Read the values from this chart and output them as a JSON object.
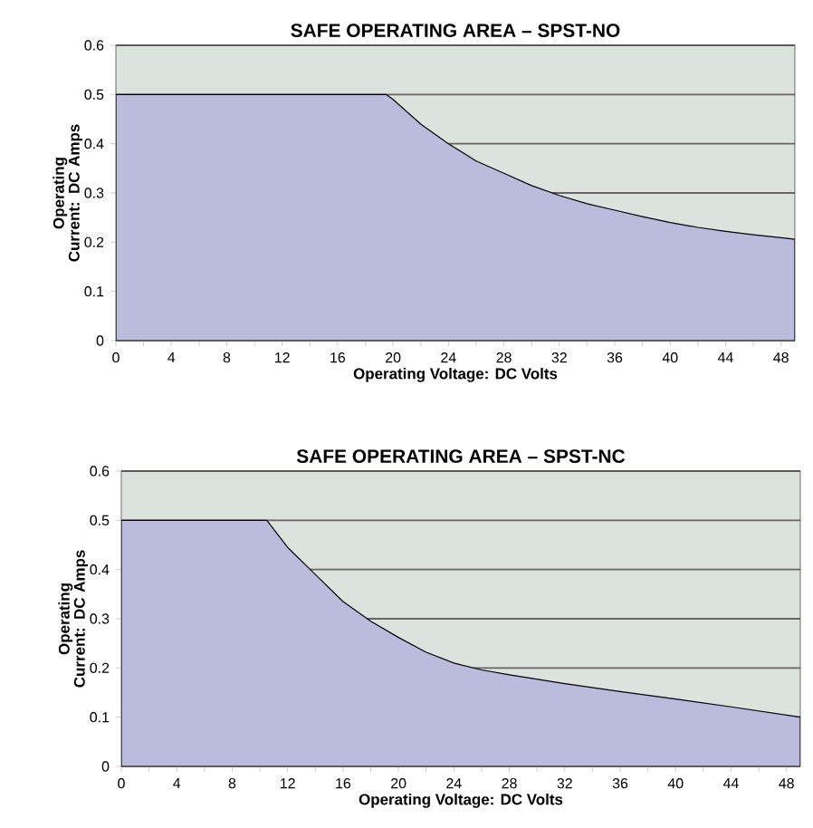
{
  "chart_data": [
    {
      "type": "area",
      "title": "SAFE OPERATING AREA – SPST-NO",
      "xlabel": "Operating Voltage: DC Volts",
      "ylabel": "Operating Current: DC Amps",
      "color": "#bbbcdb",
      "grid": "y",
      "x": [
        0,
        19.5,
        20,
        22,
        24,
        26,
        28,
        30,
        32,
        34,
        36,
        38,
        40,
        42,
        44,
        46,
        48,
        49
      ],
      "values": [
        0.5,
        0.5,
        0.49,
        0.44,
        0.4,
        0.365,
        0.34,
        0.315,
        0.295,
        0.278,
        0.265,
        0.252,
        0.24,
        0.23,
        0.222,
        0.215,
        0.209,
        0.206
      ],
      "xlim": [
        0,
        49
      ],
      "ylim": [
        0,
        0.6
      ],
      "xticks": [
        0,
        {
          "value": 2,
          "label": null
        },
        4,
        {
          "value": 6,
          "label": null
        },
        8,
        {
          "value": 10,
          "label": null
        },
        12,
        {
          "value": 14,
          "label": null
        },
        16,
        {
          "value": 18,
          "label": null
        },
        20,
        {
          "value": 22,
          "label": null
        },
        24,
        {
          "value": 26,
          "label": null
        },
        28,
        {
          "value": 30,
          "label": null
        },
        32,
        {
          "value": 34,
          "label": null
        },
        36,
        {
          "value": 38,
          "label": null
        },
        40,
        {
          "value": 42,
          "label": null
        },
        44,
        {
          "value": 46,
          "label": null
        },
        48
      ],
      "yticks": [
        0,
        0.1,
        0.2,
        0.3,
        0.4,
        0.5,
        0.6
      ]
    },
    {
      "type": "area",
      "title": "SAFE OPERATING AREA – SPST-NC",
      "xlabel": "Operating Voltage: DC Volts",
      "ylabel": "Operating Current: DC Amps",
      "color": "#bbbcdb",
      "grid": "y",
      "x": [
        0,
        10.5,
        12,
        14,
        16,
        18,
        20,
        22,
        24,
        26,
        28,
        32,
        36,
        40,
        44,
        49
      ],
      "values": [
        0.5,
        0.5,
        0.445,
        0.39,
        0.335,
        0.295,
        0.262,
        0.232,
        0.21,
        0.196,
        0.186,
        0.168,
        0.152,
        0.137,
        0.121,
        0.1
      ],
      "xlim": [
        0,
        49
      ],
      "ylim": [
        0,
        0.6
      ],
      "xticks": [
        0,
        {
          "value": 2,
          "label": null
        },
        4,
        {
          "value": 6,
          "label": null
        },
        8,
        {
          "value": 10,
          "label": null
        },
        12,
        {
          "value": 14,
          "label": null
        },
        16,
        {
          "value": 18,
          "label": null
        },
        20,
        {
          "value": 22,
          "label": null
        },
        24,
        {
          "value": 26,
          "label": null
        },
        28,
        {
          "value": 30,
          "label": null
        },
        32,
        {
          "value": 34,
          "label": null
        },
        36,
        {
          "value": 38,
          "label": null
        },
        40,
        {
          "value": 42,
          "label": null
        },
        44,
        {
          "value": 46,
          "label": null
        },
        48
      ],
      "yticks": [
        0,
        0.1,
        0.2,
        0.3,
        0.4,
        0.5,
        0.6
      ]
    }
  ]
}
